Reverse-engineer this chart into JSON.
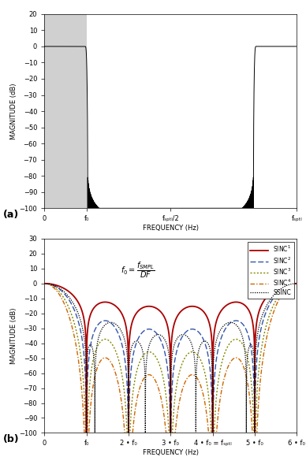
{
  "fig_width": 3.88,
  "fig_height": 5.94,
  "dpi": 100,
  "subplot_a": {
    "ylim": [
      -100,
      20
    ],
    "yticks": [
      20,
      10,
      0,
      -10,
      -20,
      -30,
      -40,
      -50,
      -60,
      -70,
      -80,
      -90,
      -100
    ],
    "ylabel": "MAGNITUDE (dB)",
    "xlabel": "FREQUENCY (Hz)",
    "xtick_labels": [
      "0",
      "f₀",
      "fₛₚₜₗ/2",
      "fₛₚₜₗ"
    ],
    "gray_color": "#d0d0d0",
    "line_color": "#000000",
    "bg_color": "#ffffff"
  },
  "subplot_b": {
    "ylim": [
      -100,
      30
    ],
    "yticks": [
      30,
      20,
      10,
      0,
      -10,
      -20,
      -30,
      -40,
      -50,
      -60,
      -70,
      -80,
      -90,
      -100
    ],
    "ylabel": "MAGNITUDE (dB)",
    "xlabel": "FREQUENCY (Hz)",
    "xtick_labels": [
      "0",
      "f₀",
      "2 • f₀",
      "3 • f₀",
      "4 • f₀ = fₛₚₜₗ",
      "5 • f₀",
      "6 • f₀"
    ],
    "sinc1_color": "#aa0000",
    "sinc2_color": "#3355aa",
    "sinc3_color": "#888800",
    "sinc4_color": "#cc6600",
    "ssinc_color": "#000000"
  }
}
